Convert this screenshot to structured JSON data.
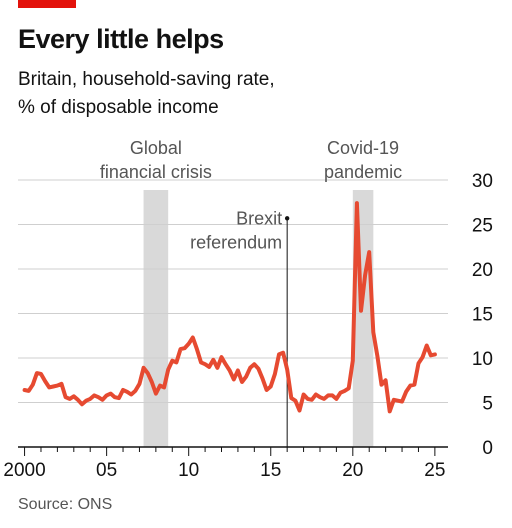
{
  "header": {
    "title": "Every little helps",
    "subtitle_line1": "Britain, household-saving rate,",
    "subtitle_line2": "% of disposable income"
  },
  "footer": {
    "source": "Source: ONS"
  },
  "colors": {
    "brand_red": "#e3120b",
    "line": "#e64a31",
    "shade": "#d9d9d9",
    "grid": "#cfcfcf",
    "axis": "#121212",
    "annotation": "#555555"
  },
  "chart_data": {
    "type": "line",
    "title": "Every little helps",
    "subtitle": "Britain, household-saving rate, % of disposable income",
    "xlim": [
      1999.6,
      2025.8
    ],
    "ylim": [
      0,
      30
    ],
    "y_ticks": [
      0,
      5,
      10,
      15,
      20,
      25,
      30
    ],
    "x_ticks": [
      {
        "value": 2000,
        "label": "2000"
      },
      {
        "value": 2005,
        "label": "05"
      },
      {
        "value": 2010,
        "label": "10"
      },
      {
        "value": 2015,
        "label": "15"
      },
      {
        "value": 2020,
        "label": "20"
      },
      {
        "value": 2025,
        "label": "25"
      }
    ],
    "y_axis_side": "right",
    "grid": true,
    "shaded_periods": [
      {
        "label_lines": [
          "Global",
          "financial crisis"
        ],
        "start": 2007.25,
        "end": 2008.75
      },
      {
        "label_lines": [
          "Covid-19",
          "pandemic"
        ],
        "start": 2020.0,
        "end": 2021.25
      }
    ],
    "annotations": [
      {
        "label_lines": [
          "Brexit",
          "referendum"
        ],
        "x": 2016.0,
        "y": 25.7
      }
    ],
    "x": [
      2000.0,
      2000.25,
      2000.5,
      2000.75,
      2001.0,
      2001.25,
      2001.5,
      2001.75,
      2002.0,
      2002.25,
      2002.5,
      2002.75,
      2003.0,
      2003.25,
      2003.5,
      2003.75,
      2004.0,
      2004.25,
      2004.5,
      2004.75,
      2005.0,
      2005.25,
      2005.5,
      2005.75,
      2006.0,
      2006.25,
      2006.5,
      2006.75,
      2007.0,
      2007.25,
      2007.5,
      2007.75,
      2008.0,
      2008.25,
      2008.5,
      2008.75,
      2009.0,
      2009.25,
      2009.5,
      2009.75,
      2010.0,
      2010.25,
      2010.5,
      2010.75,
      2011.0,
      2011.25,
      2011.5,
      2011.75,
      2012.0,
      2012.25,
      2012.5,
      2012.75,
      2013.0,
      2013.25,
      2013.5,
      2013.75,
      2014.0,
      2014.25,
      2014.5,
      2014.75,
      2015.0,
      2015.25,
      2015.5,
      2015.75,
      2016.0,
      2016.25,
      2016.5,
      2016.75,
      2017.0,
      2017.25,
      2017.5,
      2017.75,
      2018.0,
      2018.25,
      2018.5,
      2018.75,
      2019.0,
      2019.25,
      2019.5,
      2019.75,
      2020.0,
      2020.25,
      2020.5,
      2020.75,
      2021.0,
      2021.25,
      2021.5,
      2021.75,
      2022.0,
      2022.25,
      2022.5,
      2022.75,
      2023.0,
      2023.25,
      2023.5,
      2023.75,
      2024.0,
      2024.25,
      2024.5,
      2024.75,
      2025.0
    ],
    "series": [
      {
        "values": [
          6.4,
          6.3,
          7.0,
          8.3,
          8.2,
          7.4,
          6.7,
          6.8,
          6.9,
          7.1,
          5.6,
          5.4,
          5.7,
          5.3,
          4.8,
          5.2,
          5.4,
          5.8,
          5.6,
          5.3,
          5.8,
          6.0,
          5.6,
          5.5,
          6.4,
          6.2,
          5.9,
          6.3,
          7.1,
          8.9,
          8.3,
          7.3,
          6.0,
          6.9,
          6.7,
          8.7,
          9.7,
          9.5,
          11.0,
          11.1,
          11.6,
          12.3,
          11.0,
          9.5,
          9.3,
          9.0,
          9.8,
          8.9,
          10.1,
          9.3,
          8.6,
          7.6,
          8.6,
          7.3,
          7.9,
          8.9,
          9.3,
          8.8,
          7.7,
          6.4,
          6.8,
          8.2,
          10.4,
          10.6,
          8.7,
          5.5,
          5.2,
          4.1,
          5.9,
          5.4,
          5.3,
          5.9,
          5.6,
          5.4,
          5.8,
          5.8,
          5.4,
          6.1,
          6.3,
          6.6,
          9.7,
          27.4,
          15.3,
          19.3,
          21.9,
          12.9,
          10.2,
          7.0,
          7.5,
          4.0,
          5.3,
          5.2,
          5.1,
          6.2,
          6.9,
          7.0,
          9.4,
          10.1,
          11.4,
          10.3,
          10.4
        ]
      }
    ]
  }
}
